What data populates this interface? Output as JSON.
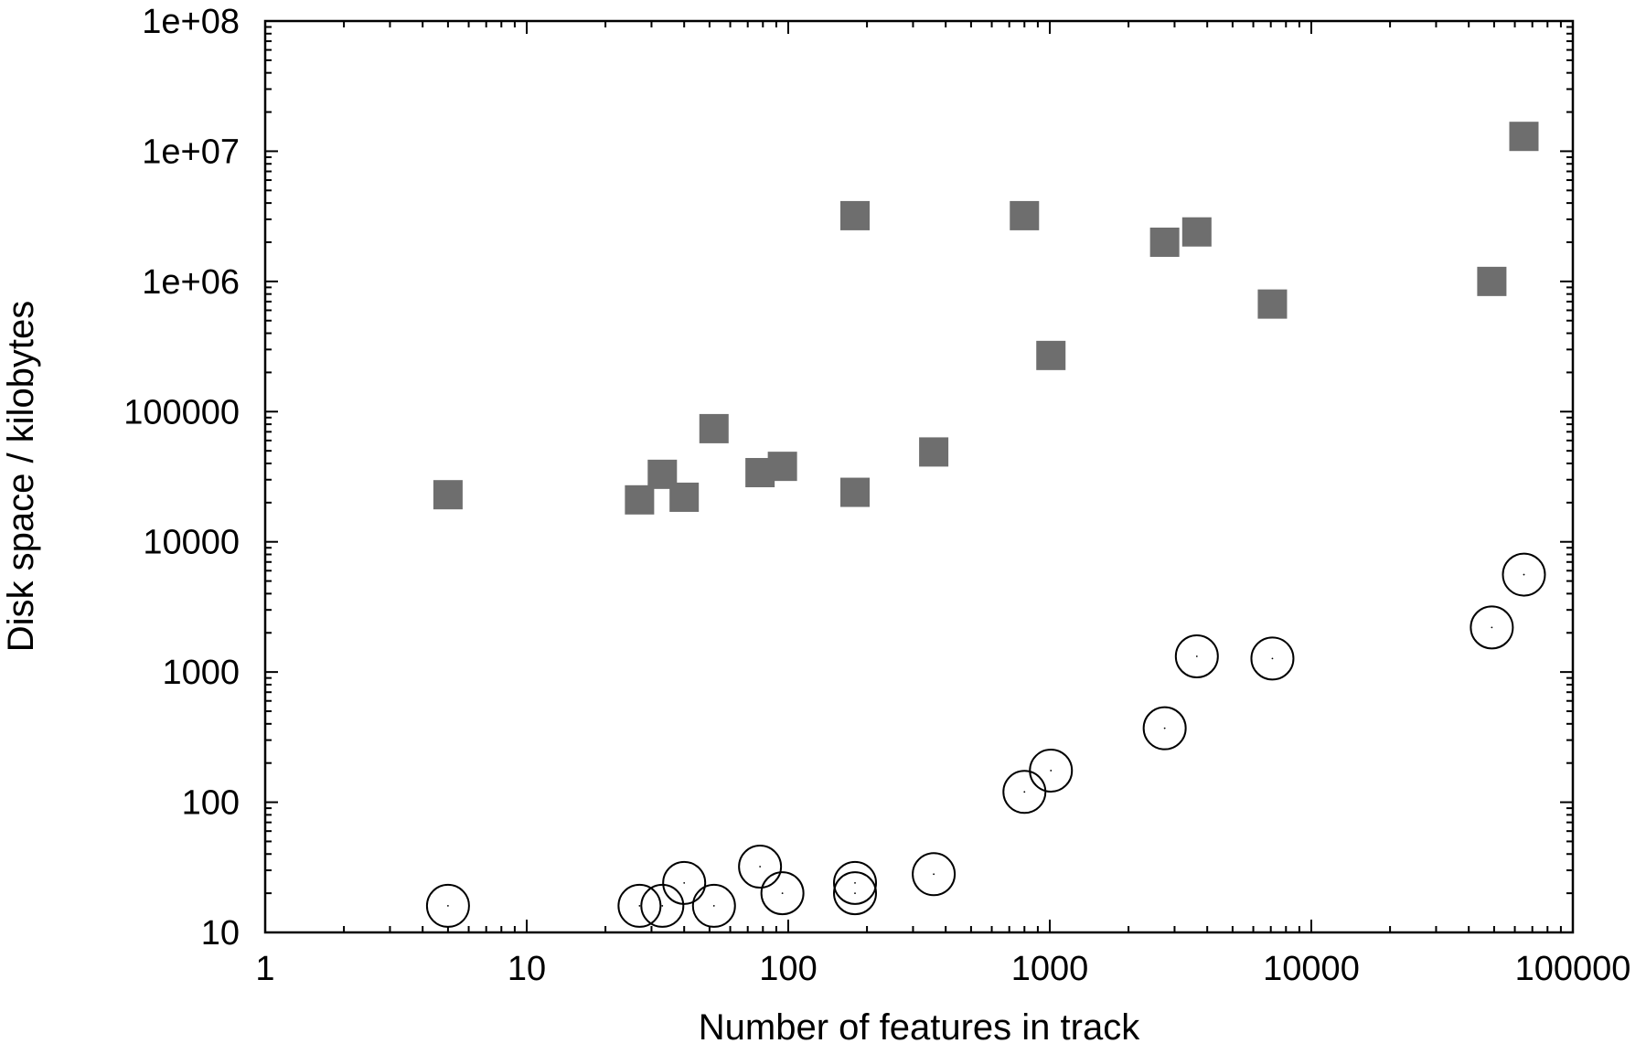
{
  "chart_data": {
    "type": "scatter",
    "title": "",
    "xlabel": "Number of features in track",
    "ylabel": "Disk space / kilobytes",
    "xscale": "log",
    "yscale": "log",
    "xlim": [
      1,
      100000
    ],
    "ylim": [
      10,
      100000000
    ],
    "grid": false,
    "legend": "none",
    "x_ticks": [
      {
        "value": 1,
        "label": "1"
      },
      {
        "value": 10,
        "label": "10"
      },
      {
        "value": 100,
        "label": "100"
      },
      {
        "value": 1000,
        "label": "1000"
      },
      {
        "value": 10000,
        "label": "10000"
      },
      {
        "value": 100000,
        "label": "100000"
      }
    ],
    "y_ticks": [
      {
        "value": 10,
        "label": "10"
      },
      {
        "value": 100,
        "label": "100"
      },
      {
        "value": 1000,
        "label": "1000"
      },
      {
        "value": 10000,
        "label": "10000"
      },
      {
        "value": 100000,
        "label": "100000"
      },
      {
        "value": 1000000,
        "label": "1e+06"
      },
      {
        "value": 10000000,
        "label": "1e+07"
      },
      {
        "value": 100000000,
        "label": "1e+08"
      }
    ],
    "series": [
      {
        "marker": "filled-square",
        "color": "#6e6e6e",
        "points": [
          {
            "x": 5,
            "y": 23000
          },
          {
            "x": 27,
            "y": 21000
          },
          {
            "x": 33,
            "y": 33000
          },
          {
            "x": 40,
            "y": 22000
          },
          {
            "x": 52,
            "y": 74000
          },
          {
            "x": 78,
            "y": 34000
          },
          {
            "x": 95,
            "y": 38000
          },
          {
            "x": 180,
            "y": 24000
          },
          {
            "x": 180,
            "y": 3200000
          },
          {
            "x": 360,
            "y": 49000
          },
          {
            "x": 800,
            "y": 3200000
          },
          {
            "x": 1010,
            "y": 270000
          },
          {
            "x": 2750,
            "y": 2000000
          },
          {
            "x": 3650,
            "y": 2400000
          },
          {
            "x": 7100,
            "y": 670000
          },
          {
            "x": 49000,
            "y": 1000000
          },
          {
            "x": 65000,
            "y": 13000000
          }
        ]
      },
      {
        "marker": "open-circle",
        "color": "#000000",
        "points": [
          {
            "x": 5,
            "y": 16
          },
          {
            "x": 27,
            "y": 16
          },
          {
            "x": 33,
            "y": 16
          },
          {
            "x": 40,
            "y": 24
          },
          {
            "x": 52,
            "y": 16
          },
          {
            "x": 78,
            "y": 32
          },
          {
            "x": 95,
            "y": 20
          },
          {
            "x": 180,
            "y": 24
          },
          {
            "x": 180,
            "y": 20
          },
          {
            "x": 360,
            "y": 28
          },
          {
            "x": 800,
            "y": 120
          },
          {
            "x": 1010,
            "y": 175
          },
          {
            "x": 2750,
            "y": 370
          },
          {
            "x": 3650,
            "y": 1320
          },
          {
            "x": 7100,
            "y": 1270
          },
          {
            "x": 49000,
            "y": 2200
          },
          {
            "x": 65000,
            "y": 5600
          }
        ]
      }
    ]
  }
}
